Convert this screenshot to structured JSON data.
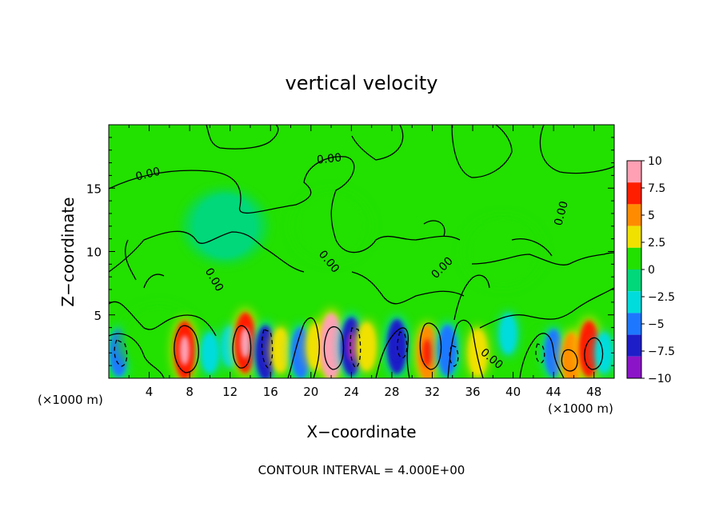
{
  "chart_data": {
    "type": "heatmap",
    "title": "vertical velocity",
    "xlabel": "X−coordinate",
    "ylabel": "Z−coordinate",
    "x_unit_label": "(×1000 m)",
    "y_unit_label": "(×1000 m)",
    "footer": "CONTOUR INTERVAL = 4.000E+00",
    "xlim": [
      0,
      50
    ],
    "ylim": [
      0,
      20
    ],
    "x_ticks": [
      "4",
      "8",
      "12",
      "16",
      "20",
      "24",
      "28",
      "32",
      "36",
      "40",
      "44",
      "48"
    ],
    "y_ticks": [
      "5",
      "10",
      "15"
    ],
    "colorbar": {
      "range": [
        -10,
        10
      ],
      "tick_labels": [
        "10",
        "7.5",
        "5",
        "2.5",
        "0",
        "−2.5",
        "−5",
        "−7.5",
        "−10"
      ],
      "colors": [
        "#ffa0b4",
        "#ff1e00",
        "#ff8c00",
        "#f0e100",
        "#22e000",
        "#00d87a",
        "#00dcdc",
        "#1e78ff",
        "#1e1ec8",
        "#8c14c8"
      ]
    },
    "contour_labels": [
      "0.00",
      "0.00",
      "0.00",
      "0.00",
      "0.00",
      "0.00",
      "0.00"
    ],
    "cells": [
      {
        "x": 1,
        "z": 2,
        "w": -4
      },
      {
        "x": 5,
        "z": 3,
        "w": 1
      },
      {
        "x": 7.5,
        "z": 2.2,
        "w": 7
      },
      {
        "x": 10,
        "z": 2,
        "w": -2
      },
      {
        "x": 12,
        "z": 2.5,
        "w": -2
      },
      {
        "x": 13.5,
        "z": 2.8,
        "w": 7.5
      },
      {
        "x": 15.5,
        "z": 2,
        "w": -6
      },
      {
        "x": 17,
        "z": 2.2,
        "w": 3
      },
      {
        "x": 19,
        "z": 2,
        "w": -5
      },
      {
        "x": 20.5,
        "z": 2.5,
        "w": 3.5
      },
      {
        "x": 22,
        "z": 2.5,
        "w": 9
      },
      {
        "x": 24,
        "z": 2.5,
        "w": -7
      },
      {
        "x": 25.5,
        "z": 2.5,
        "w": 4
      },
      {
        "x": 28.5,
        "z": 2.5,
        "w": -6
      },
      {
        "x": 31.5,
        "z": 2,
        "w": 6
      },
      {
        "x": 33.5,
        "z": 2.2,
        "w": -5
      },
      {
        "x": 36.5,
        "z": 2,
        "w": 4
      },
      {
        "x": 39.5,
        "z": 3.5,
        "w": -2
      },
      {
        "x": 42.5,
        "z": 2.5,
        "w": 2
      },
      {
        "x": 44,
        "z": 2,
        "w": -4
      },
      {
        "x": 45.8,
        "z": 1.5,
        "w": 5.5
      },
      {
        "x": 47.5,
        "z": 2.3,
        "w": 6.5
      },
      {
        "x": 49,
        "z": 2,
        "w": -2
      },
      {
        "x": 11.5,
        "z": 12,
        "w": -0.5
      },
      {
        "x": 22,
        "z": 12,
        "w": 0.5
      },
      {
        "x": 39,
        "z": 10,
        "w": 0.5
      }
    ]
  }
}
